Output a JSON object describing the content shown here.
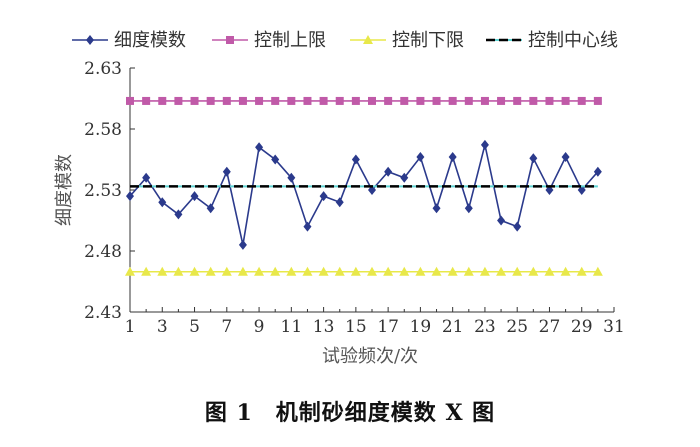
{
  "chart_data": {
    "type": "line",
    "x": [
      1,
      2,
      3,
      4,
      5,
      6,
      7,
      8,
      9,
      10,
      11,
      12,
      13,
      14,
      15,
      16,
      17,
      18,
      19,
      20,
      21,
      22,
      23,
      24,
      25,
      26,
      27,
      28,
      29,
      30
    ],
    "series": [
      {
        "name": "细度模数",
        "color": "#2b3a8c",
        "marker": "diamond",
        "values": [
          2.525,
          2.54,
          2.52,
          2.51,
          2.525,
          2.515,
          2.545,
          2.485,
          2.565,
          2.555,
          2.54,
          2.5,
          2.525,
          2.52,
          2.555,
          2.53,
          2.545,
          2.54,
          2.557,
          2.515,
          2.557,
          2.515,
          2.567,
          2.505,
          2.5,
          2.556,
          2.53,
          2.557,
          2.53,
          2.545
        ]
      },
      {
        "name": "控制上限",
        "color": "#c05aa8",
        "marker": "square",
        "constant": 2.603
      },
      {
        "name": "控制下限",
        "color": "#e8e84a",
        "marker": "triangle",
        "constant": 2.463
      },
      {
        "name": "控制中心线",
        "color": "#000000",
        "marker": "line",
        "constant": 2.533
      }
    ],
    "x_ticks": [
      1,
      3,
      5,
      7,
      9,
      11,
      13,
      15,
      17,
      19,
      21,
      23,
      25,
      27,
      29,
      31
    ],
    "y_ticks": [
      "2.43",
      "2.48",
      "2.53",
      "2.58",
      "2.63"
    ],
    "xlim": [
      1,
      31
    ],
    "ylim": [
      2.43,
      2.63
    ],
    "xlabel": "试验频次/次",
    "ylabel": "细度模数",
    "legend_position": "top",
    "grid": false
  },
  "caption": "图 1　机制砂细度模数 X 图"
}
